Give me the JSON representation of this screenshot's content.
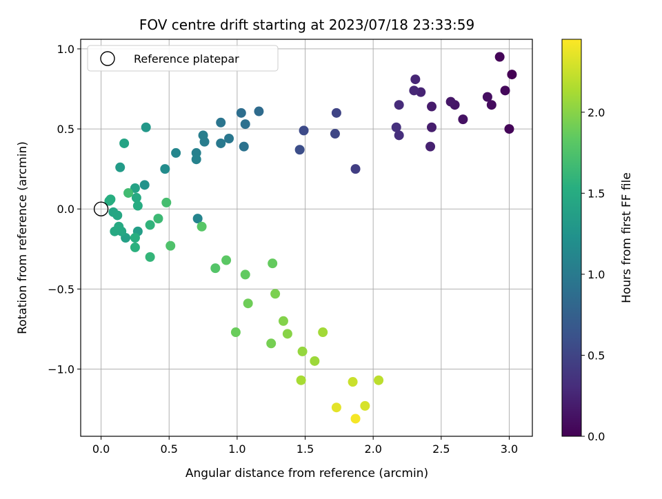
{
  "chart_data": {
    "type": "scatter",
    "title": "FOV centre drift starting at 2023/07/18 23:33:59",
    "xlabel": "Angular distance from reference (arcmin)",
    "ylabel": "Rotation from reference (arcmin)",
    "xlim": [
      -0.15,
      3.17
    ],
    "ylim": [
      -1.42,
      1.06
    ],
    "x_ticks": [
      0.0,
      0.5,
      1.0,
      1.5,
      2.0,
      2.5,
      3.0
    ],
    "x_tick_labels": [
      "0.0",
      "0.5",
      "1.0",
      "1.5",
      "2.0",
      "2.5",
      "3.0"
    ],
    "y_ticks": [
      -1.0,
      -0.5,
      0.0,
      0.5,
      1.0
    ],
    "y_tick_labels": [
      "−1.0",
      "−0.5",
      "0.0",
      "0.5",
      "1.0"
    ],
    "grid": true,
    "legend": {
      "placement": "upper-left",
      "entries": [
        "Reference platepar"
      ]
    },
    "reference_point": {
      "x": 0.0,
      "y": 0.0
    },
    "colorbar": {
      "label": "Hours from first FF file",
      "colormap": "viridis",
      "range": [
        0.0,
        2.45
      ],
      "ticks": [
        0.0,
        0.5,
        1.0,
        1.5,
        2.0
      ],
      "tick_labels": [
        "0.0",
        "0.5",
        "1.0",
        "1.5",
        "2.0"
      ]
    },
    "points": [
      {
        "x": 3.02,
        "y": 0.84,
        "c": 0.0
      },
      {
        "x": 2.93,
        "y": 0.95,
        "c": 0.03
      },
      {
        "x": 3.0,
        "y": 0.5,
        "c": 0.03
      },
      {
        "x": 2.97,
        "y": 0.74,
        "c": 0.05
      },
      {
        "x": 2.87,
        "y": 0.65,
        "c": 0.08
      },
      {
        "x": 2.84,
        "y": 0.7,
        "c": 0.1
      },
      {
        "x": 2.66,
        "y": 0.56,
        "c": 0.12
      },
      {
        "x": 2.6,
        "y": 0.65,
        "c": 0.14
      },
      {
        "x": 2.57,
        "y": 0.67,
        "c": 0.16
      },
      {
        "x": 2.43,
        "y": 0.64,
        "c": 0.18
      },
      {
        "x": 2.43,
        "y": 0.51,
        "c": 0.2
      },
      {
        "x": 2.42,
        "y": 0.39,
        "c": 0.22
      },
      {
        "x": 2.35,
        "y": 0.73,
        "c": 0.24
      },
      {
        "x": 2.31,
        "y": 0.81,
        "c": 0.26
      },
      {
        "x": 2.3,
        "y": 0.74,
        "c": 0.27
      },
      {
        "x": 2.19,
        "y": 0.65,
        "c": 0.3
      },
      {
        "x": 2.19,
        "y": 0.46,
        "c": 0.32
      },
      {
        "x": 2.17,
        "y": 0.51,
        "c": 0.34
      },
      {
        "x": 1.87,
        "y": 0.25,
        "c": 0.45
      },
      {
        "x": 1.73,
        "y": 0.6,
        "c": 0.5
      },
      {
        "x": 1.72,
        "y": 0.47,
        "c": 0.52
      },
      {
        "x": 1.49,
        "y": 0.49,
        "c": 0.55
      },
      {
        "x": 1.46,
        "y": 0.37,
        "c": 0.58
      },
      {
        "x": 1.16,
        "y": 0.61,
        "c": 0.85
      },
      {
        "x": 1.03,
        "y": 0.6,
        "c": 0.88
      },
      {
        "x": 1.06,
        "y": 0.53,
        "c": 0.9
      },
      {
        "x": 1.05,
        "y": 0.39,
        "c": 0.92
      },
      {
        "x": 0.88,
        "y": 0.54,
        "c": 0.95
      },
      {
        "x": 0.94,
        "y": 0.44,
        "c": 0.97
      },
      {
        "x": 0.88,
        "y": 0.41,
        "c": 0.99
      },
      {
        "x": 0.76,
        "y": 0.42,
        "c": 1.02
      },
      {
        "x": 0.75,
        "y": 0.46,
        "c": 1.04
      },
      {
        "x": 0.7,
        "y": 0.35,
        "c": 1.06
      },
      {
        "x": 0.7,
        "y": 0.31,
        "c": 1.08
      },
      {
        "x": 0.71,
        "y": -0.06,
        "c": 1.1
      },
      {
        "x": 0.55,
        "y": 0.35,
        "c": 1.12
      },
      {
        "x": 0.47,
        "y": 0.25,
        "c": 1.18
      },
      {
        "x": 0.32,
        "y": 0.15,
        "c": 1.25
      },
      {
        "x": 0.33,
        "y": 0.51,
        "c": 1.3
      },
      {
        "x": 0.14,
        "y": 0.26,
        "c": 1.33
      },
      {
        "x": 0.27,
        "y": -0.14,
        "c": 1.36
      },
      {
        "x": 0.18,
        "y": -0.18,
        "c": 1.38
      },
      {
        "x": 0.25,
        "y": 0.13,
        "c": 1.4
      },
      {
        "x": 0.17,
        "y": 0.41,
        "c": 1.42
      },
      {
        "x": 0.09,
        "y": -0.02,
        "c": 1.44
      },
      {
        "x": 0.12,
        "y": -0.04,
        "c": 1.45
      },
      {
        "x": 0.15,
        "y": -0.14,
        "c": 1.46
      },
      {
        "x": 0.1,
        "y": -0.14,
        "c": 1.47
      },
      {
        "x": 0.13,
        "y": -0.11,
        "c": 1.48
      },
      {
        "x": 0.26,
        "y": 0.07,
        "c": 1.49
      },
      {
        "x": 0.27,
        "y": 0.02,
        "c": 1.5
      },
      {
        "x": 0.06,
        "y": 0.05,
        "c": 1.51
      },
      {
        "x": 0.07,
        "y": 0.06,
        "c": 1.52
      },
      {
        "x": 0.25,
        "y": -0.18,
        "c": 1.53
      },
      {
        "x": 0.25,
        "y": -0.24,
        "c": 1.55
      },
      {
        "x": 0.36,
        "y": -0.1,
        "c": 1.58
      },
      {
        "x": 0.36,
        "y": -0.3,
        "c": 1.6
      },
      {
        "x": 0.42,
        "y": -0.06,
        "c": 1.65
      },
      {
        "x": 0.2,
        "y": 0.1,
        "c": 1.68
      },
      {
        "x": 0.48,
        "y": 0.04,
        "c": 1.7
      },
      {
        "x": 0.51,
        "y": -0.23,
        "c": 1.75
      },
      {
        "x": 0.74,
        "y": -0.11,
        "c": 1.8
      },
      {
        "x": 0.84,
        "y": -0.37,
        "c": 1.78
      },
      {
        "x": 0.92,
        "y": -0.32,
        "c": 1.82
      },
      {
        "x": 1.06,
        "y": -0.41,
        "c": 1.85
      },
      {
        "x": 1.26,
        "y": -0.34,
        "c": 1.86
      },
      {
        "x": 1.08,
        "y": -0.59,
        "c": 1.9
      },
      {
        "x": 0.99,
        "y": -0.77,
        "c": 1.88
      },
      {
        "x": 1.28,
        "y": -0.53,
        "c": 1.95
      },
      {
        "x": 1.25,
        "y": -0.84,
        "c": 1.93
      },
      {
        "x": 1.34,
        "y": -0.7,
        "c": 1.98
      },
      {
        "x": 1.37,
        "y": -0.78,
        "c": 2.0
      },
      {
        "x": 1.48,
        "y": -0.89,
        "c": 2.05
      },
      {
        "x": 1.57,
        "y": -0.95,
        "c": 2.08
      },
      {
        "x": 1.63,
        "y": -0.77,
        "c": 2.1
      },
      {
        "x": 1.47,
        "y": -1.07,
        "c": 2.12
      },
      {
        "x": 2.04,
        "y": -1.07,
        "c": 2.2
      },
      {
        "x": 1.85,
        "y": -1.08,
        "c": 2.25
      },
      {
        "x": 1.94,
        "y": -1.23,
        "c": 2.3
      },
      {
        "x": 1.73,
        "y": -1.24,
        "c": 2.35
      },
      {
        "x": 1.87,
        "y": -1.31,
        "c": 2.42
      }
    ]
  }
}
